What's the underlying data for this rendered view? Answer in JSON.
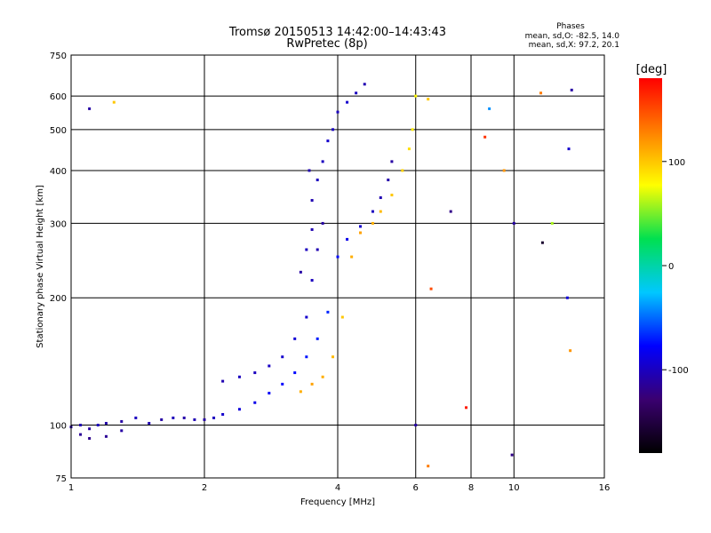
{
  "chart_data": {
    "type": "scatter",
    "title": "Tromsø 20150513 14:42:00–14:43:43",
    "subtitle": "RwPretec (8p)",
    "xlabel": "Frequency [MHz]",
    "ylabel": "Stationary phase Virtual Height [km]",
    "x_scale": "log",
    "y_scale": "log",
    "xlim": [
      1,
      16
    ],
    "ylim": [
      75,
      750
    ],
    "x_ticks": [
      1,
      2,
      4,
      6,
      8,
      10,
      16
    ],
    "y_ticks": [
      75,
      100,
      200,
      300,
      400,
      500,
      600,
      750
    ],
    "grid": true,
    "annotation": {
      "heading": "Phases",
      "line1": "mean, sd,O: -82.5, 14.0",
      "line2": "mean, sd,X:  97.2, 20.1"
    },
    "colorbar": {
      "label": "[deg]",
      "range": [
        -180,
        180
      ],
      "ticks": [
        -100,
        0,
        100
      ],
      "stops": [
        "#000000",
        "#3a0070",
        "#0000ff",
        "#00c8ff",
        "#00e050",
        "#ffff00",
        "#ff8000",
        "#ff0000"
      ]
    },
    "series": [
      {
        "points": [
          [
            1.0,
            99,
            -110
          ],
          [
            1.05,
            100,
            -105
          ],
          [
            1.1,
            98,
            -112
          ],
          [
            1.15,
            100,
            -100
          ],
          [
            1.2,
            101,
            -108
          ],
          [
            1.3,
            102,
            -110
          ],
          [
            1.4,
            104,
            -100
          ],
          [
            1.5,
            101,
            -105
          ],
          [
            1.6,
            103,
            -110
          ],
          [
            1.7,
            104,
            -102
          ],
          [
            1.8,
            104,
            -108
          ],
          [
            1.9,
            103,
            -104
          ],
          [
            2.0,
            103,
            -110
          ],
          [
            2.1,
            104,
            -100
          ],
          [
            2.2,
            106,
            -95
          ],
          [
            2.4,
            109,
            -90
          ],
          [
            2.6,
            113,
            -85
          ],
          [
            2.8,
            119,
            -80
          ],
          [
            3.0,
            125,
            -78
          ],
          [
            3.2,
            133,
            -75
          ],
          [
            3.4,
            145,
            -72
          ],
          [
            3.6,
            160,
            -70
          ],
          [
            3.8,
            185,
            -68
          ],
          [
            4.0,
            250,
            -75
          ],
          [
            4.2,
            275,
            -85
          ],
          [
            4.5,
            295,
            -95
          ],
          [
            4.8,
            320,
            -100
          ],
          [
            5.0,
            345,
            -105
          ],
          [
            5.2,
            380,
            -108
          ],
          [
            5.3,
            420,
            -110
          ],
          [
            1.05,
            95,
            -115
          ],
          [
            1.1,
            93,
            -118
          ],
          [
            1.2,
            94,
            -115
          ],
          [
            1.3,
            97,
            -110
          ],
          [
            2.2,
            127,
            -105
          ],
          [
            2.4,
            130,
            -100
          ],
          [
            2.6,
            133,
            -100
          ],
          [
            2.8,
            138,
            -98
          ],
          [
            3.0,
            145,
            -95
          ],
          [
            3.2,
            160,
            -92
          ],
          [
            3.4,
            180,
            -95
          ],
          [
            3.5,
            220,
            -100
          ],
          [
            3.6,
            260,
            -105
          ],
          [
            3.7,
            300,
            -110
          ],
          [
            3.5,
            340,
            -105
          ],
          [
            3.6,
            380,
            -100
          ],
          [
            3.7,
            420,
            -100
          ],
          [
            3.8,
            470,
            -95
          ],
          [
            3.9,
            500,
            -100
          ],
          [
            3.4,
            260,
            -100
          ],
          [
            3.5,
            290,
            -105
          ],
          [
            3.3,
            230,
            -110
          ],
          [
            3.45,
            400,
            -105
          ],
          [
            4.0,
            550,
            -100
          ],
          [
            4.2,
            580,
            -95
          ],
          [
            4.4,
            610,
            -100
          ],
          [
            4.6,
            640,
            -105
          ],
          [
            3.3,
            120,
            110
          ],
          [
            3.5,
            125,
            115
          ],
          [
            3.7,
            130,
            110
          ],
          [
            3.9,
            145,
            105
          ],
          [
            4.1,
            180,
            100
          ],
          [
            4.3,
            250,
            110
          ],
          [
            4.5,
            285,
            115
          ],
          [
            4.8,
            300,
            110
          ],
          [
            5.0,
            320,
            105
          ],
          [
            5.3,
            350,
            100
          ],
          [
            5.6,
            400,
            95
          ],
          [
            5.8,
            450,
            90
          ],
          [
            5.9,
            500,
            85
          ],
          [
            6.0,
            600,
            80
          ],
          [
            6.0,
            100,
            -110
          ],
          [
            6.4,
            80,
            130
          ],
          [
            6.4,
            590,
            100
          ],
          [
            6.5,
            210,
            150
          ],
          [
            7.2,
            320,
            -120
          ],
          [
            7.8,
            110,
            170
          ],
          [
            8.6,
            480,
            160
          ],
          [
            8.8,
            560,
            -40
          ],
          [
            9.5,
            400,
            120
          ],
          [
            9.9,
            85,
            -120
          ],
          [
            10.0,
            300,
            -110
          ],
          [
            11.5,
            610,
            130
          ],
          [
            11.6,
            270,
            -160
          ],
          [
            12.2,
            300,
            60
          ],
          [
            13.5,
            620,
            -110
          ],
          [
            13.2,
            200,
            -90
          ],
          [
            13.3,
            450,
            -95
          ],
          [
            13.4,
            150,
            120
          ],
          [
            1.1,
            560,
            -110
          ],
          [
            1.25,
            580,
            100
          ]
        ]
      }
    ]
  }
}
